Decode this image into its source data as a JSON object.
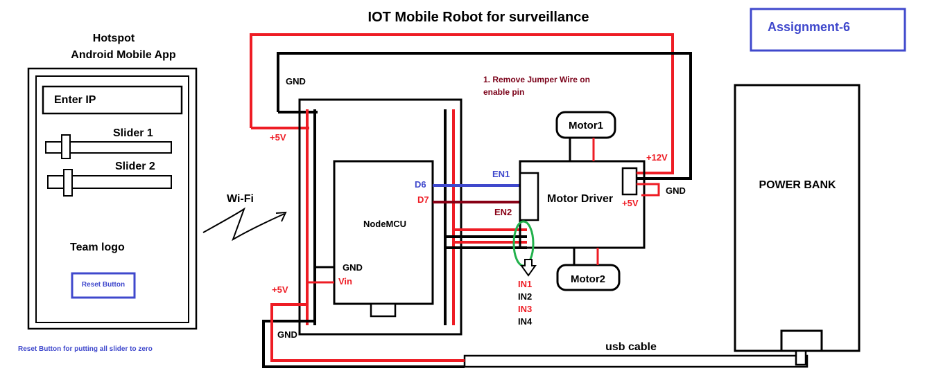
{
  "title": "IOT Mobile Robot for surveillance",
  "assignment_label": "Assignment-6",
  "colors": {
    "power": "#ee1c24",
    "ground": "#000000",
    "enable_a": "#3f48cc",
    "enable_b": "#880015",
    "annotation": "#7a0018",
    "highlight": "#22b14c",
    "accent_blue": "#3f48cc"
  },
  "phone": {
    "header_line1": "Hotspot",
    "header_line2": "Android Mobile App",
    "ip_field_label": "Enter IP",
    "slider1_label": "Slider 1",
    "slider2_label": "Slider 2",
    "team_logo_label": "Team logo",
    "reset_button_label": "Reset Button",
    "footnote": "Reset Button for putting all slider to zero"
  },
  "wifi_label": "Wi-Fi",
  "breadboard": {
    "gnd_top": "GND",
    "vcc_top": "+5V",
    "vcc_bottom": "+5V",
    "gnd_bottom": "GND"
  },
  "nodemcu": {
    "label": "NodeMCU",
    "pin_d6": "D6",
    "pin_d7": "D7",
    "pin_gnd": "GND",
    "pin_vin": "Vin"
  },
  "motor_driver": {
    "label": "Motor Driver",
    "en1": "EN1",
    "en2": "EN2",
    "v12": "+12V",
    "gnd": "GND",
    "v5": "+5V",
    "inputs": [
      "IN1",
      "IN2",
      "IN3",
      "IN4"
    ]
  },
  "note": {
    "line1": "1. Remove Jumper Wire on",
    "line2": "enable pin"
  },
  "motor1_label": "Motor1",
  "motor2_label": "Motor2",
  "power_bank_label": "POWER BANK",
  "usb_cable_label": "usb cable"
}
